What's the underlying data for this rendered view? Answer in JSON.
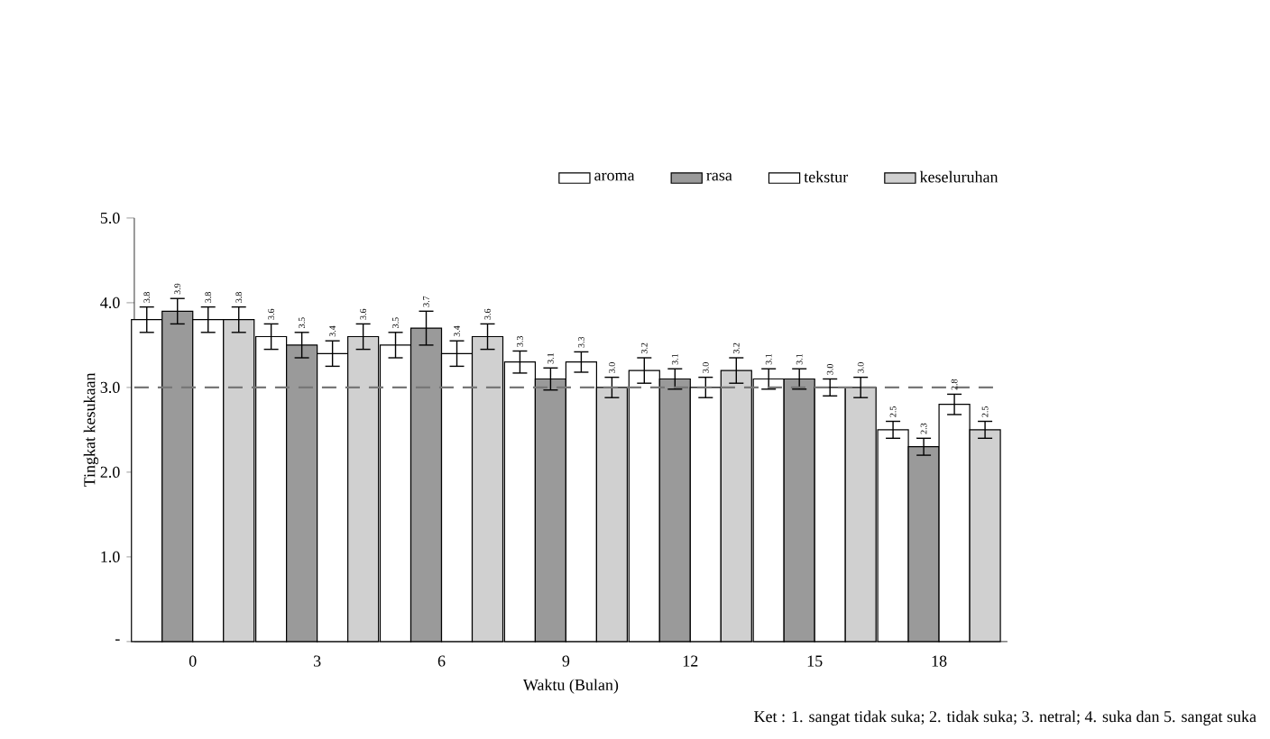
{
  "chart_data": {
    "type": "bar",
    "xlabel": "Waktu (Bulan)",
    "ylabel": "Tingkat kesukaan",
    "categories": [
      "0",
      "3",
      "6",
      "9",
      "12",
      "15",
      "18"
    ],
    "series": [
      {
        "name": "aroma",
        "color": "#ffffff",
        "values": [
          3.8,
          3.6,
          3.5,
          3.3,
          3.2,
          3.1,
          2.5
        ],
        "errors": [
          0.15,
          0.15,
          0.15,
          0.13,
          0.15,
          0.12,
          0.1
        ],
        "value_labels": [
          "3.8",
          "3.6",
          "3.5",
          "3.3",
          "3.2",
          "3.1",
          "2.5"
        ]
      },
      {
        "name": "rasa",
        "color": "#9a9a9a",
        "values": [
          3.9,
          3.5,
          3.7,
          3.1,
          3.1,
          3.1,
          2.3
        ],
        "errors": [
          0.15,
          0.15,
          0.2,
          0.13,
          0.12,
          0.12,
          0.1
        ],
        "value_labels": [
          "3.9",
          "3.5",
          "3.7",
          "3.1",
          "3.1",
          "3.1",
          "2.3"
        ]
      },
      {
        "name": "tekstur",
        "color": "#ffffff",
        "values": [
          3.8,
          3.4,
          3.4,
          3.3,
          3.0,
          3.0,
          2.8
        ],
        "errors": [
          0.15,
          0.15,
          0.15,
          0.12,
          0.12,
          0.1,
          0.12
        ],
        "value_labels": [
          "3.8",
          "3.4",
          "3.4",
          "3.3",
          "3.0",
          "3.0",
          "2.8"
        ]
      },
      {
        "name": "keseluruhan",
        "color": "#d0d0d0",
        "values": [
          3.8,
          3.6,
          3.6,
          3.0,
          3.2,
          3.0,
          2.5
        ],
        "errors": [
          0.15,
          0.15,
          0.15,
          0.12,
          0.15,
          0.12,
          0.1
        ],
        "value_labels": [
          "3.8",
          "3.6",
          "3.6",
          "3.0",
          "3.2",
          "3.0",
          "2.5"
        ]
      }
    ],
    "ylim": [
      0,
      5
    ],
    "yticks": [
      {
        "value": 0,
        "label": "-"
      },
      {
        "value": 1,
        "label": "1.0"
      },
      {
        "value": 2,
        "label": "2.0"
      },
      {
        "value": 3,
        "label": "3.0"
      },
      {
        "value": 4,
        "label": "4.0"
      },
      {
        "value": 5,
        "label": "5.0"
      }
    ],
    "ref_lines": [
      {
        "axis": "y",
        "value": 3.0,
        "line_style": "dashed",
        "color": "#777777"
      }
    ],
    "legend": "top right",
    "annotations": [
      "Ket : 1. sangat tidak suka; 2. tidak suka; 3. netral; 4. suka dan 5. sangat suka"
    ]
  }
}
